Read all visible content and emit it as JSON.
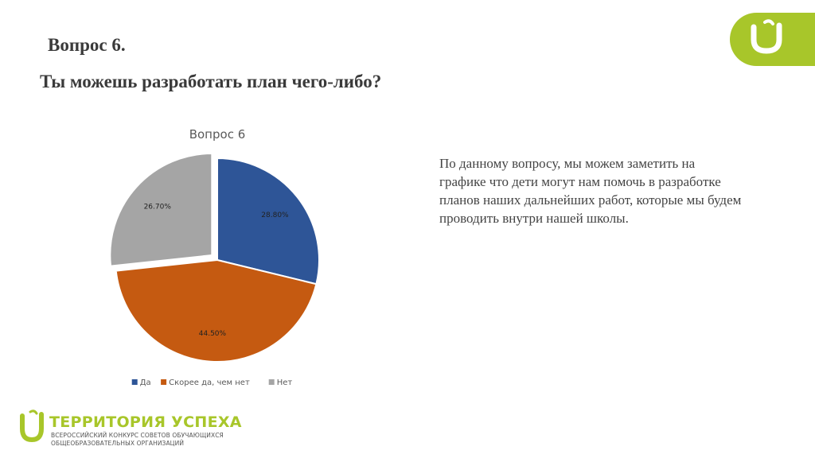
{
  "slide": {
    "heading": "Вопрос 6.",
    "subheading": "Ты можешь разработать план чего-либо?",
    "comment": "По данному вопросу, мы можем заметить на графике что дети могут нам помочь в разработке планов наших дальнейших работ, которые мы будем проводить внутри нашей школы."
  },
  "branding": {
    "name": "ТЕРРИТОРИЯ УСПЕХА",
    "line1": "ВСЕРОССИЙСКИЙ КОНКУРС СОВЕТОВ ОБУЧАЮЩИХСЯ",
    "line2": "ОБЩЕОБРАЗОВАТЕЛЬНЫХ ОРГАНИЗАЦИЙ",
    "accent_color": "#a8c62a"
  },
  "chart_data": {
    "type": "pie",
    "title": "Вопрос 6",
    "categories": [
      "Да",
      "Скорее да, чем нет",
      "Нет"
    ],
    "values": [
      28.8,
      44.5,
      26.7
    ],
    "labels": [
      "28.80%",
      "44.50%",
      "26.70%"
    ],
    "colors": [
      "#2e5597",
      "#c55a11",
      "#a5a5a5"
    ],
    "exploded": [
      false,
      false,
      true
    ],
    "start_angle_deg": 0,
    "direction": "clockwise",
    "legend_position": "bottom"
  }
}
